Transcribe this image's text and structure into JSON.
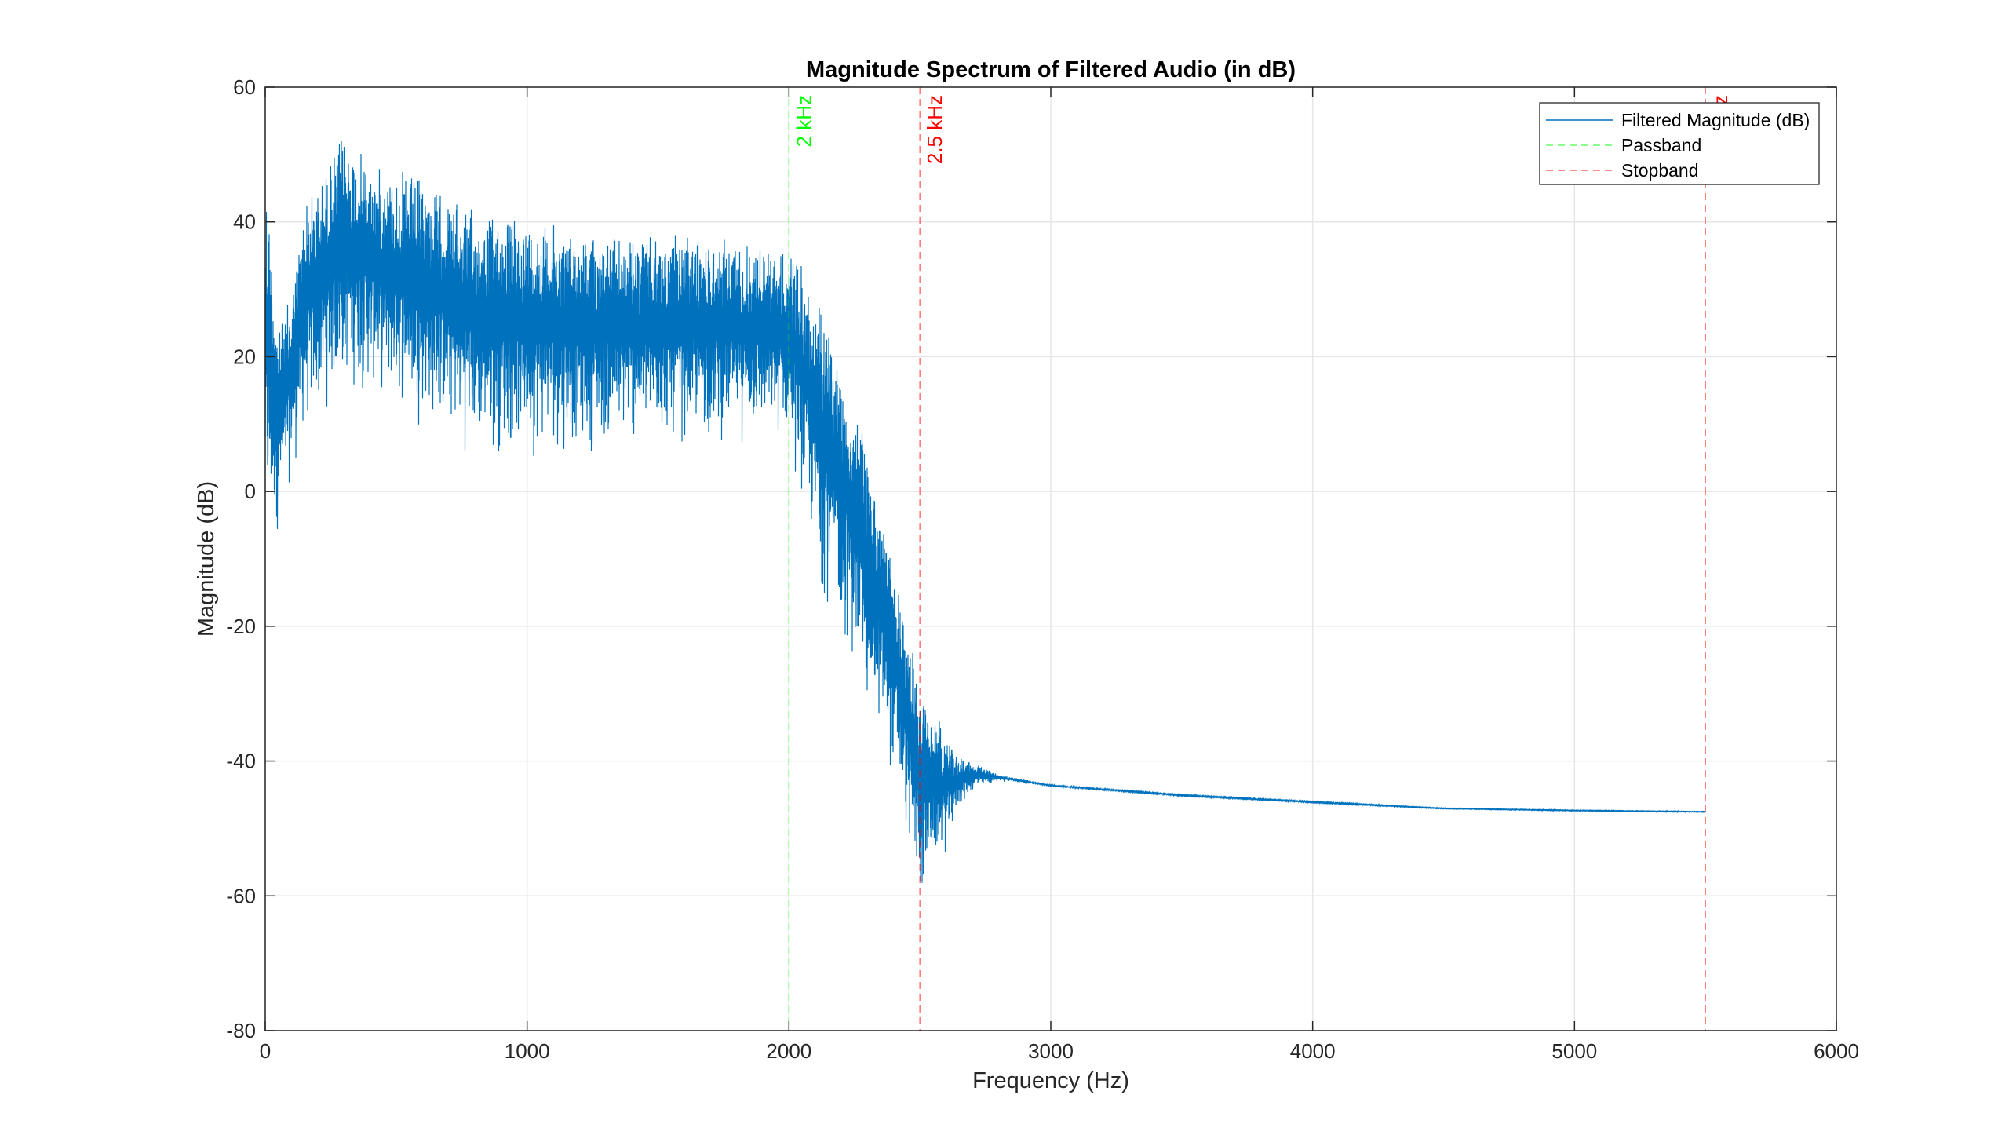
{
  "chart_data": {
    "type": "line",
    "title": "Magnitude Spectrum of Filtered Audio (in dB)",
    "xlabel": "Frequency (Hz)",
    "ylabel": "Magnitude (dB)",
    "xlim": [
      0,
      6000
    ],
    "ylim": [
      -80,
      60
    ],
    "xticks": [
      "0",
      "1000",
      "2000",
      "3000",
      "4000",
      "5000",
      "6000"
    ],
    "yticks": [
      "60",
      "40",
      "20",
      "0",
      "-20",
      "-40",
      "-60",
      "-80"
    ],
    "grid": true,
    "legend_position": "top-right",
    "series": [
      {
        "name": "Filtered Magnitude (dB)",
        "color": "#0072BD",
        "style": "solid",
        "envelope": {
          "x": [
            0,
            50,
            100,
            150,
            200,
            300,
            400,
            500,
            600,
            700,
            800,
            1000,
            1200,
            1400,
            1600,
            1800,
            2000,
            2050,
            2100,
            2200,
            2300,
            2400,
            2450,
            2500,
            2550,
            2600,
            2650,
            2700,
            2800,
            3000,
            3500,
            4000,
            4500,
            5000,
            5500
          ],
          "upper": [
            52,
            24,
            30,
            44,
            46,
            54,
            49,
            48,
            47,
            44,
            42,
            41,
            39,
            38,
            38,
            38,
            36,
            34,
            30,
            20,
            6,
            -10,
            -20,
            -28,
            -32,
            -36,
            -39,
            -40,
            -42,
            -43.5,
            -45,
            -46,
            -47,
            -47.3,
            -47.5
          ],
          "lower": [
            -17,
            -8,
            0,
            5,
            8,
            12,
            12,
            10,
            8,
            5,
            3,
            3,
            4,
            4,
            5,
            5,
            5,
            -5,
            -15,
            -25,
            -35,
            -45,
            -55,
            -65,
            -58,
            -55,
            -48,
            -45,
            -43,
            -43.8,
            -45.2,
            -46.2,
            -47.1,
            -47.4,
            -47.6
          ]
        }
      },
      {
        "name": "Passband",
        "color": "#00ff00",
        "style": "dashed",
        "x": 2000
      },
      {
        "name": "Stopband",
        "color": "#ff0000",
        "style": "dashed",
        "x": [
          2500,
          5500
        ]
      }
    ],
    "annotations": [
      {
        "text": "2 kHz",
        "x": 2000,
        "color": "#00ff00"
      },
      {
        "text": "2.5 kHz",
        "x": 2500,
        "color": "#ff0000"
      },
      {
        "text": "z",
        "x": 5500,
        "color": "#ff0000"
      }
    ]
  }
}
